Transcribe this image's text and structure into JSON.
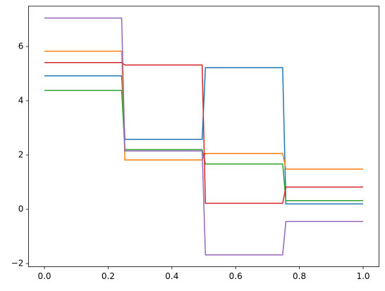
{
  "chart_data": {
    "type": "line",
    "x": [
      0,
      0.2424,
      0.2525,
      0.4949,
      0.5051,
      0.7475,
      0.7576,
      1.0
    ],
    "series": [
      {
        "color": "#1f77b4",
        "values": [
          4.92,
          4.92,
          2.58,
          2.58,
          5.22,
          5.22,
          0.2,
          0.2
        ]
      },
      {
        "color": "#ff7f0e",
        "values": [
          5.83,
          5.83,
          1.82,
          1.82,
          2.06,
          2.06,
          1.48,
          1.48
        ]
      },
      {
        "color": "#2ca02c",
        "values": [
          4.38,
          4.38,
          2.2,
          2.2,
          1.67,
          1.67,
          0.32,
          0.32
        ]
      },
      {
        "color": "#d62728",
        "values": [
          5.41,
          5.41,
          5.32,
          5.32,
          0.22,
          0.22,
          0.82,
          0.82
        ]
      },
      {
        "color": "#9467bd",
        "values": [
          7.05,
          7.05,
          2.15,
          2.15,
          -1.68,
          -1.68,
          -0.45,
          -0.45
        ]
      }
    ],
    "xlim": [
      -0.05,
      1.05
    ],
    "xticks": [
      {
        "value": 0,
        "label": "0.0"
      },
      {
        "value": 0.2,
        "label": "0.2"
      },
      {
        "value": 0.4,
        "label": "0.4"
      },
      {
        "value": 0.6,
        "label": "0.6"
      },
      {
        "value": 0.8,
        "label": "0.8"
      },
      {
        "value": 1.0,
        "label": "1.0"
      }
    ],
    "ylim": [
      -2.1165,
      7.4865
    ],
    "yticks": [
      {
        "value": -2,
        "label": "−2"
      },
      0,
      2,
      4,
      6
    ]
  }
}
